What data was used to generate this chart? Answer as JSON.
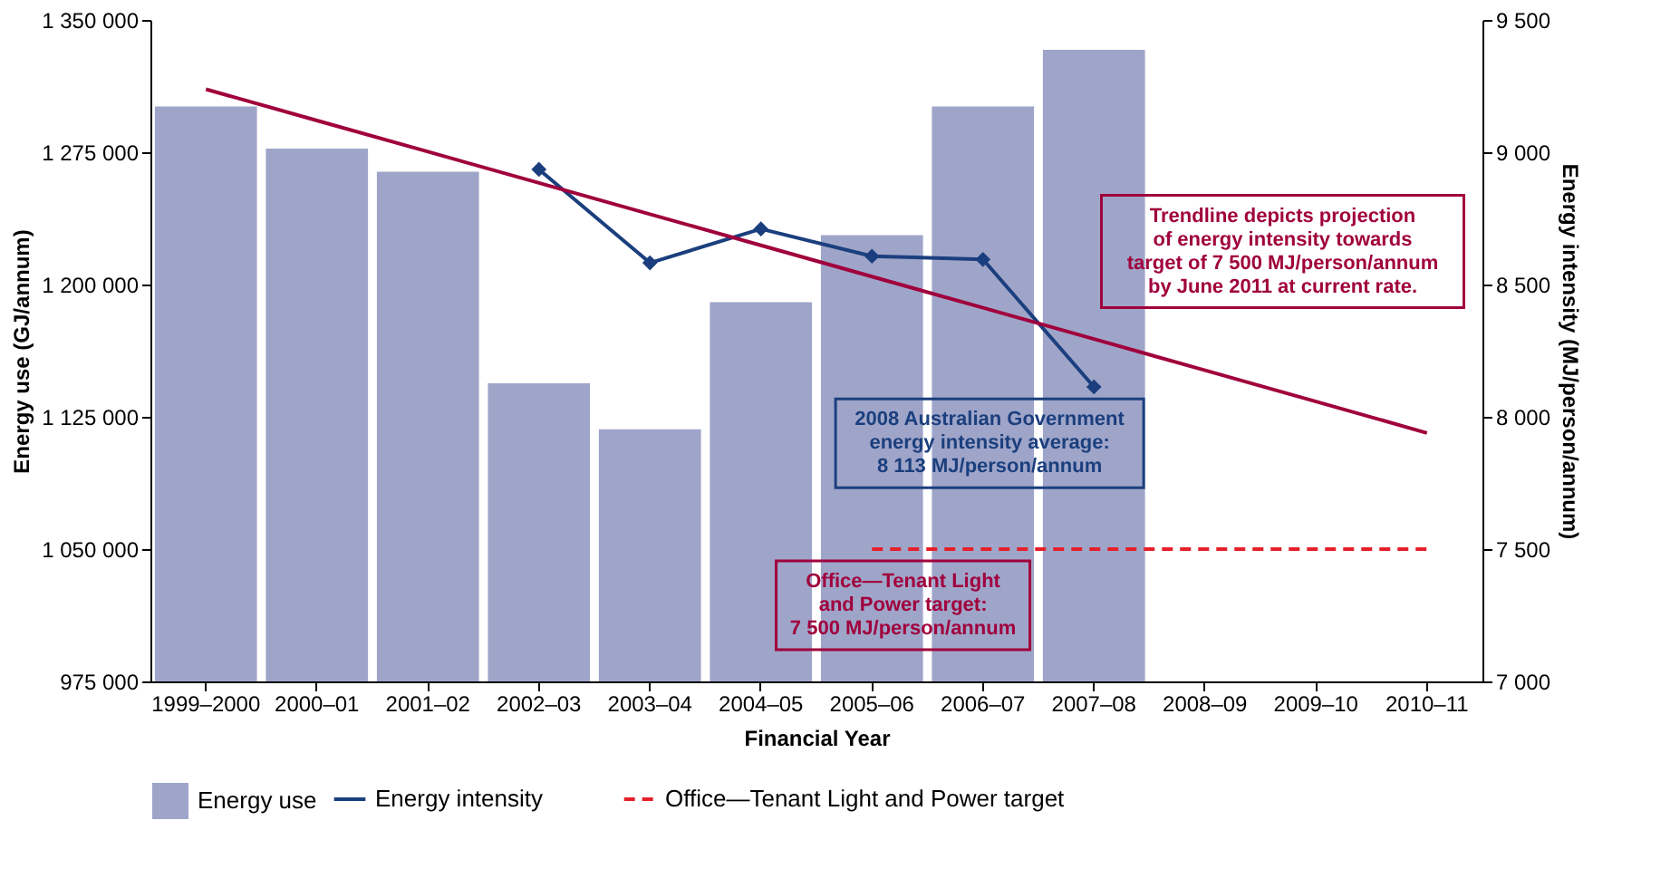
{
  "chart_data": {
    "type": "bar",
    "xlabel": "Financial Year",
    "ylabel": "Energy use (GJ/annum)",
    "y2label": "Energy intensity (MJ/person/annum)",
    "categories": [
      "1999–2000",
      "2000–01",
      "2001–02",
      "2002–03",
      "2003–04",
      "2004–05",
      "2005–06",
      "2006–07",
      "2007–08",
      "2008–09",
      "2009–10",
      "2010–11"
    ],
    "series": [
      {
        "name": "Energy use",
        "color": "#9fa5c9",
        "values": [
          1301000,
          1277000,
          1264000,
          1144000,
          1118000,
          1190000,
          1228000,
          1301000,
          1333000,
          null,
          null,
          null
        ]
      },
      {
        "name": "Energy intensity",
        "type": "line",
        "axis": "y2",
        "color": "#1b3f7e",
        "marker": "diamond",
        "line_style": "solid",
        "values": [
          null,
          null,
          null,
          8935,
          8582,
          8710,
          8607,
          8595,
          8113,
          null,
          null,
          null
        ]
      },
      {
        "type": "line",
        "axis": "y2",
        "color": "#a0003c",
        "marker": "none",
        "line_style": "solid",
        "values": [
          9238,
          9120,
          9002,
          8884,
          8766,
          8648,
          8530,
          8412,
          8294,
          8176,
          8058,
          7939
        ]
      },
      {
        "name": "Office—Tenant Light and Power target",
        "type": "line",
        "axis": "y2",
        "color": "#e5202a",
        "marker": "none",
        "line_style": "dashed",
        "values": [
          null,
          null,
          null,
          null,
          null,
          null,
          7500,
          7500,
          7500,
          7500,
          7500,
          7500
        ]
      }
    ],
    "ylim": [
      975000,
      1350000
    ],
    "yticks": [
      {
        "value": 975000,
        "label": "975 000"
      },
      {
        "value": 1050000,
        "label": "1 050 000"
      },
      {
        "value": 1125000,
        "label": "1 125 000"
      },
      {
        "value": 1200000,
        "label": "1 200 000"
      },
      {
        "value": 1275000,
        "label": "1 275 000"
      },
      {
        "value": 1350000,
        "label": "1 350 000"
      }
    ],
    "y2lim": [
      7000,
      9500
    ],
    "y2ticks": [
      {
        "value": 7000,
        "label": "7 000"
      },
      {
        "value": 7500,
        "label": "7 500"
      },
      {
        "value": 8000,
        "label": "8 000"
      },
      {
        "value": 8500,
        "label": "8 500"
      },
      {
        "value": 9000,
        "label": "9 000"
      },
      {
        "value": 9500,
        "label": "9 500"
      }
    ],
    "grid": false,
    "legend": "bottom",
    "annotations": [
      "Trendline depicts projection\nof energy intensity towards\ntarget of 7 500 MJ/person/annum\nby June 2011 at current rate.",
      "2008 Australian Government\nenergy intensity average:\n8 113 MJ/person/annum",
      "Office—Tenant Light\nand Power target:\n7 500 MJ/person/annum"
    ]
  }
}
